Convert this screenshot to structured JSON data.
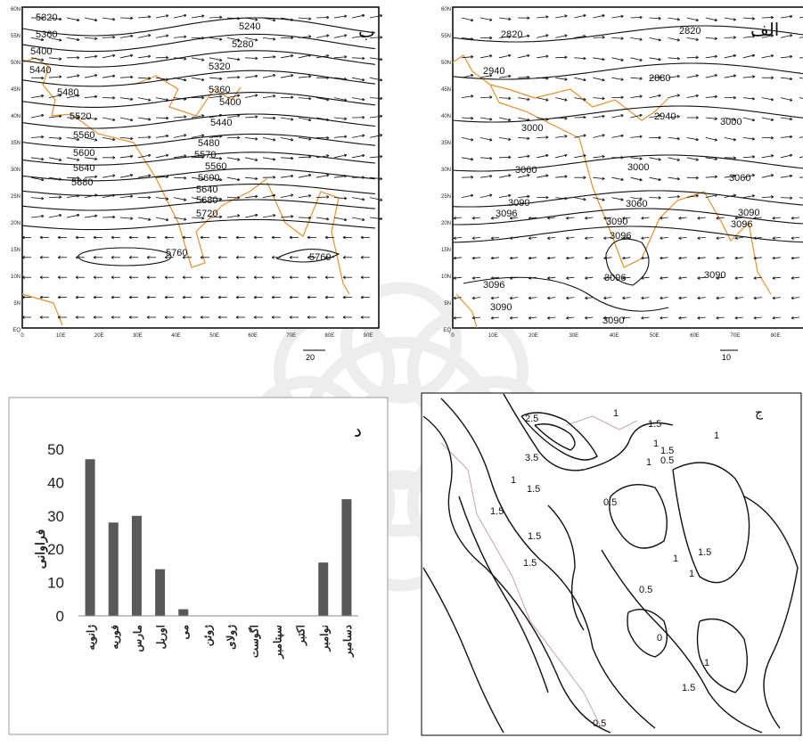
{
  "panel_b": {
    "corner_label": "ب",
    "contour_labels": [
      "5320",
      "5360",
      "5400",
      "5440",
      "5480",
      "5520",
      "5560",
      "5600",
      "5640",
      "5680",
      "5240",
      "5280",
      "5320",
      "5360",
      "5400",
      "5440",
      "5480",
      "5570",
      "5560",
      "5600",
      "5640",
      "5680",
      "5720",
      "5760",
      "5760"
    ],
    "lon_labels": [
      "0",
      "10E",
      "20E",
      "30E",
      "40E",
      "50E",
      "60E",
      "70E",
      "80E",
      "90E"
    ],
    "lat_labels": [
      "60N",
      "55N",
      "50N",
      "45N",
      "40N",
      "35N",
      "30N",
      "25N",
      "20N",
      "15N",
      "10N",
      "5N",
      "EQ"
    ],
    "vector_scale": "20"
  },
  "panel_alef": {
    "corner_label": "الف",
    "contour_labels": [
      "2820",
      "2820",
      "2940",
      "2880",
      "2940",
      "3000",
      "3000",
      "3060",
      "3000",
      "3060",
      "3090",
      "3096",
      "3060",
      "3090",
      "3096",
      "3090",
      "3096",
      "3096",
      "3090",
      "3096",
      "3090",
      "3090"
    ],
    "lon_labels": [
      "0",
      "10E",
      "20E",
      "30E",
      "40E",
      "50E",
      "60E",
      "70E",
      "80E",
      "90E"
    ],
    "lat_labels": [
      "60N",
      "55N",
      "50N",
      "45N",
      "40N",
      "35N",
      "30N",
      "25N",
      "20N",
      "15N",
      "10N",
      "5N",
      "EQ"
    ],
    "vector_scale": "10"
  },
  "panel_j": {
    "corner_label": "ج",
    "contour_labels": [
      "2.5",
      "3.5",
      "1",
      "1.5",
      "1",
      "0.5",
      "1.5",
      "1",
      "1.5",
      "1",
      "1.5",
      "0.5",
      "1.5",
      "1",
      "1.5",
      "1",
      "0.5",
      "0",
      "1.5",
      "1",
      "1",
      "1.5",
      "0.5"
    ]
  },
  "chart_data": {
    "type": "bar",
    "corner_label": "د",
    "categories": [
      "ژانویه",
      "فوریه",
      "مارس",
      "اوریل",
      "می",
      "ژوئن",
      "ژولای",
      "اگوست",
      "سپتامبر",
      "اکتبر",
      "نوامبر",
      "دسامبر"
    ],
    "values": [
      47,
      28,
      30,
      14,
      2,
      0,
      0,
      0,
      0,
      0,
      16,
      35
    ],
    "ylabel": "فراوانی",
    "xlabel": "",
    "ylim": [
      0,
      50
    ],
    "yticks": [
      0,
      10,
      20,
      30,
      40,
      50
    ],
    "grid": false,
    "bar_color": "#595959"
  },
  "colors": {
    "coast": "#e8902f",
    "contour": "#111111",
    "vector": "#111111"
  }
}
